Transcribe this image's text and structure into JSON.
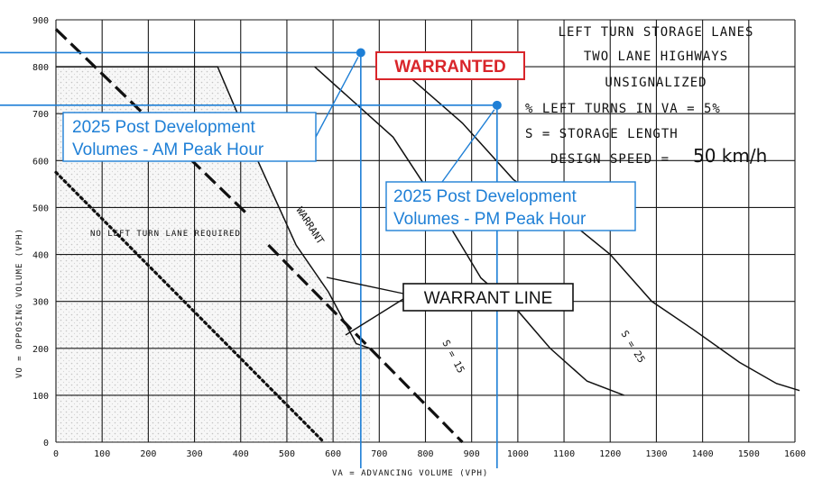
{
  "chart_data": {
    "type": "line",
    "title_lines": [
      "LEFT TURN STORAGE LANES",
      "TWO LANE HIGHWAYS",
      "UNSIGNALIZED"
    ],
    "xlabel": "VA = ADVANCING VOLUME (VPH)",
    "ylabel": "VO = OPPOSING VOLUME (VPH)",
    "xlim": [
      0,
      1600
    ],
    "ylim": [
      0,
      900
    ],
    "x_ticks": [
      "0",
      "100",
      "200",
      "300",
      "400",
      "500",
      "600",
      "700",
      "800",
      "900",
      "1000",
      "1100",
      "1200",
      "1300",
      "1400",
      "1500",
      "1600"
    ],
    "y_ticks": [
      "0",
      "100",
      "200",
      "300",
      "400",
      "500",
      "600",
      "700",
      "800",
      "900"
    ],
    "grid": true,
    "parameters": {
      "left_turns": "% LEFT TURNS IN VA = 5%",
      "storage": "S = STORAGE LENGTH",
      "design_speed_label": "DESIGN SPEED =",
      "design_speed_value": "50 km/h"
    },
    "series": [
      {
        "id": "warrant",
        "style": "solid",
        "label": "WARRANT",
        "points": [
          [
            0,
            800
          ],
          [
            350,
            800
          ],
          [
            430,
            615
          ],
          [
            520,
            420
          ],
          [
            590,
            320
          ],
          [
            650,
            210
          ],
          [
            680,
            200
          ]
        ]
      },
      {
        "id": "s15",
        "style": "solid",
        "label": "S = 15",
        "points": [
          [
            560,
            800
          ],
          [
            730,
            650
          ],
          [
            810,
            530
          ],
          [
            920,
            350
          ],
          [
            1000,
            280
          ],
          [
            1070,
            200
          ],
          [
            1150,
            130
          ],
          [
            1230,
            100
          ]
        ]
      },
      {
        "id": "s25",
        "style": "solid",
        "label": "S = 25",
        "points": [
          [
            740,
            800
          ],
          [
            880,
            680
          ],
          [
            990,
            560
          ],
          [
            1100,
            480
          ],
          [
            1200,
            400
          ],
          [
            1290,
            300
          ],
          [
            1380,
            240
          ],
          [
            1480,
            170
          ],
          [
            1560,
            125
          ],
          [
            1610,
            110
          ]
        ]
      },
      {
        "id": "dashed_upper",
        "style": "dashed",
        "label": "",
        "points": [
          [
            0,
            880
          ],
          [
            410,
            490
          ]
        ]
      },
      {
        "id": "dashed_lower",
        "style": "dashed",
        "label": "",
        "points": [
          [
            460,
            420
          ],
          [
            880,
            0
          ]
        ]
      },
      {
        "id": "dotted",
        "style": "dotted",
        "label": "",
        "points": [
          [
            0,
            575
          ],
          [
            580,
            0
          ]
        ]
      }
    ],
    "points_of_interest": [
      {
        "id": "am",
        "label_lines": [
          "2025 Post Development",
          "Volumes - AM Peak Hour"
        ],
        "x": 660,
        "y": 830
      },
      {
        "id": "pm",
        "label_lines": [
          "2025 Post Development",
          "Volumes - PM Peak Hour"
        ],
        "x": 955,
        "y": 718
      }
    ],
    "annotations": {
      "warranted": "WARRANTED",
      "warrant_line": "WARRANT LINE",
      "no_left_turn": "NO LEFT TURN LANE REQUIRED",
      "warrant_curve": "WARRANT",
      "s15": "S = 15",
      "s25": "S = 25"
    },
    "colors": {
      "grid": "#1a1a1a",
      "curve": "#111111",
      "callout": "#1e7fd6",
      "warranted_border": "#d9252a",
      "warranted_text": "#d9252a",
      "shade": "#e4e4e4"
    }
  }
}
